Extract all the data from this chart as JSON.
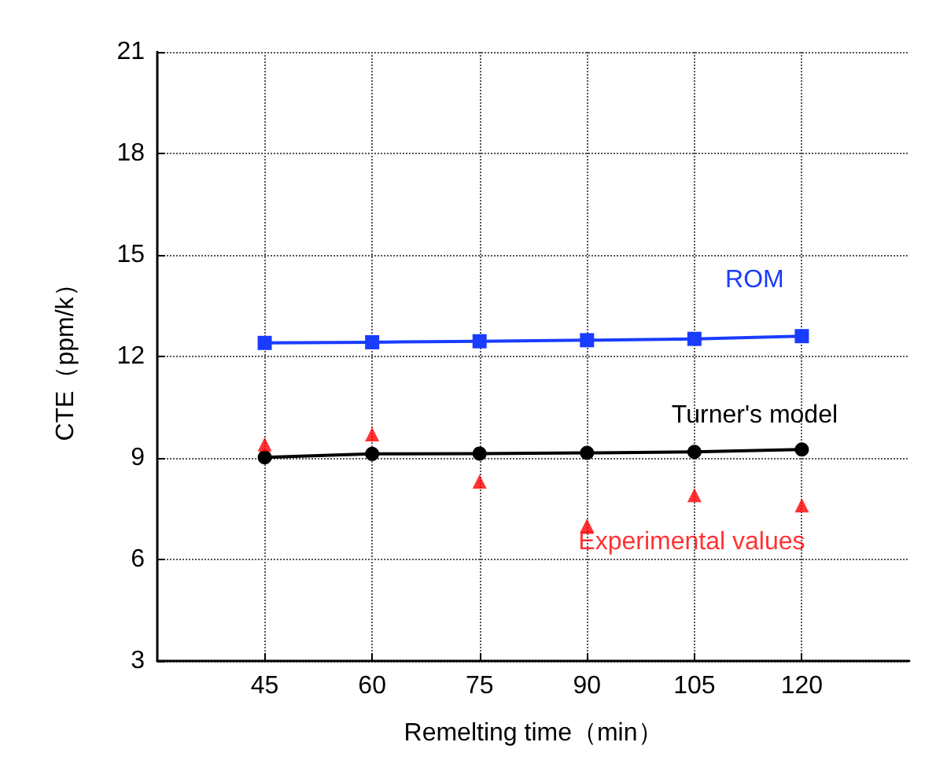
{
  "chart_data": {
    "type": "line",
    "xlabel": "Remelting time（min）",
    "ylabel": "CTE（ppm/k）",
    "x": [
      45,
      60,
      75,
      90,
      105,
      120
    ],
    "series": [
      {
        "name": "ROM",
        "color": "#1a3cff",
        "marker": "square",
        "values": [
          12.4,
          12.42,
          12.45,
          12.48,
          12.52,
          12.6
        ]
      },
      {
        "name": "Turner's model",
        "color": "#000000",
        "marker": "circle",
        "values": [
          9.02,
          9.12,
          9.13,
          9.15,
          9.18,
          9.25
        ]
      },
      {
        "name": "Experimental values",
        "type": "scatter",
        "color": "#ff0000",
        "marker": "triangle",
        "values": [
          9.4,
          9.7,
          8.3,
          7.0,
          7.9,
          7.6
        ]
      }
    ],
    "xlim": [
      30,
      135
    ],
    "xticks": [
      45,
      60,
      75,
      90,
      105,
      120
    ],
    "ylim": [
      3,
      21
    ],
    "yticks": [
      3,
      6,
      9,
      12,
      15,
      18,
      21
    ],
    "grid": true,
    "legend": false,
    "line_style": "solid"
  }
}
